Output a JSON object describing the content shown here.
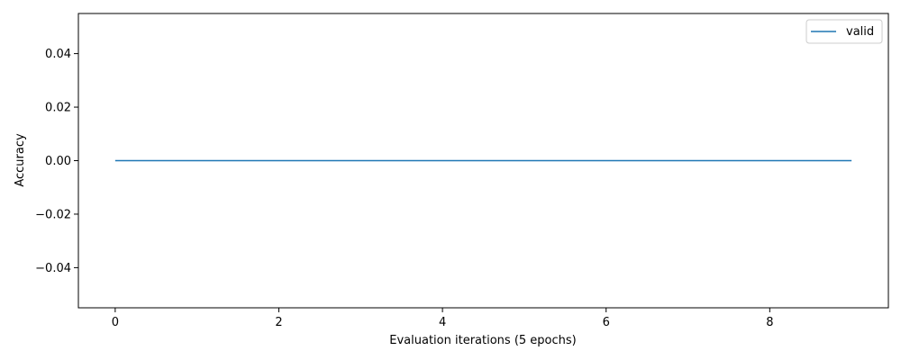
{
  "chart_data": {
    "type": "line",
    "title": "",
    "xlabel": "Evaluation iterations (5 epochs)",
    "ylabel": "Accuracy",
    "xlim": [
      -0.45,
      9.45
    ],
    "ylim": [
      -0.055,
      0.055
    ],
    "x_ticks": [
      0,
      2,
      4,
      6,
      8
    ],
    "x_tick_labels": [
      "0",
      "2",
      "4",
      "6",
      "8"
    ],
    "y_ticks": [
      -0.04,
      -0.02,
      0.0,
      0.02,
      0.04
    ],
    "y_tick_labels": [
      "−0.04",
      "−0.02",
      "0.00",
      "0.02",
      "0.04"
    ],
    "grid": false,
    "legend_position": "top-right",
    "series": [
      {
        "name": "valid",
        "color": "#1f77b4",
        "x": [
          0,
          1,
          2,
          3,
          4,
          5,
          6,
          7,
          8,
          9
        ],
        "y": [
          0,
          0,
          0,
          0,
          0,
          0,
          0,
          0,
          0,
          0
        ]
      }
    ]
  }
}
